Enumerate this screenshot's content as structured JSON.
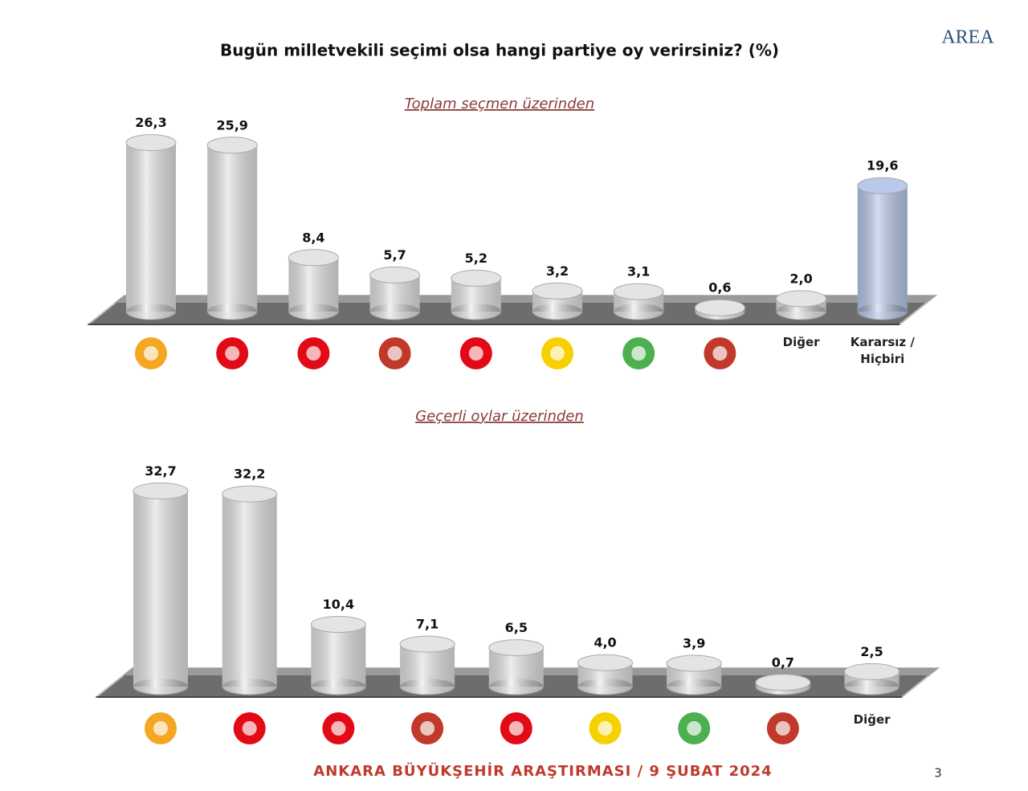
{
  "title": "Bugün milletvekili seçimi olsa hangi partiye oy verirsiniz? (%)",
  "logo": "AREA",
  "footer": "ANKARA BÜYÜKŞEHİR ARAŞTIRMASI / 9 ŞUBAT 2024",
  "page_number": "3",
  "chart_data": [
    {
      "type": "bar",
      "subtitle": "Toplam seçmen üzerinden",
      "categories": [
        null,
        null,
        null,
        null,
        null,
        null,
        null,
        null,
        "Diğer",
        "Kararsız / Hiçbiri"
      ],
      "values": [
        26.3,
        25.9,
        8.4,
        5.7,
        5.2,
        3.2,
        3.1,
        0.6,
        2.0,
        19.6
      ],
      "value_labels": [
        "26,3",
        "25,9",
        "8,4",
        "5,7",
        "5,2",
        "3,2",
        "3,1",
        "0,6",
        "2,0",
        "19,6"
      ],
      "colors": [
        "#e4e4e4",
        "#e4e4e4",
        "#e4e4e4",
        "#e4e4e4",
        "#e4e4e4",
        "#e4e4e4",
        "#e4e4e4",
        "#e4e4e4",
        "#e4e4e4",
        "#b9c9ea"
      ]
    },
    {
      "type": "bar",
      "subtitle": "Geçerli oylar üzerinden",
      "categories": [
        null,
        null,
        null,
        null,
        null,
        null,
        null,
        null,
        "Diğer"
      ],
      "values": [
        32.7,
        32.2,
        10.4,
        7.1,
        6.5,
        4.0,
        3.9,
        0.7,
        2.5
      ],
      "value_labels": [
        "32,7",
        "32,2",
        "10,4",
        "7,1",
        "6,5",
        "4,0",
        "3,9",
        "0,7",
        "2,5"
      ],
      "colors": [
        "#e4e4e4",
        "#e4e4e4",
        "#e4e4e4",
        "#e4e4e4",
        "#e4e4e4",
        "#e4e4e4",
        "#e4e4e4",
        "#e4e4e4",
        "#e4e4e4"
      ]
    }
  ]
}
